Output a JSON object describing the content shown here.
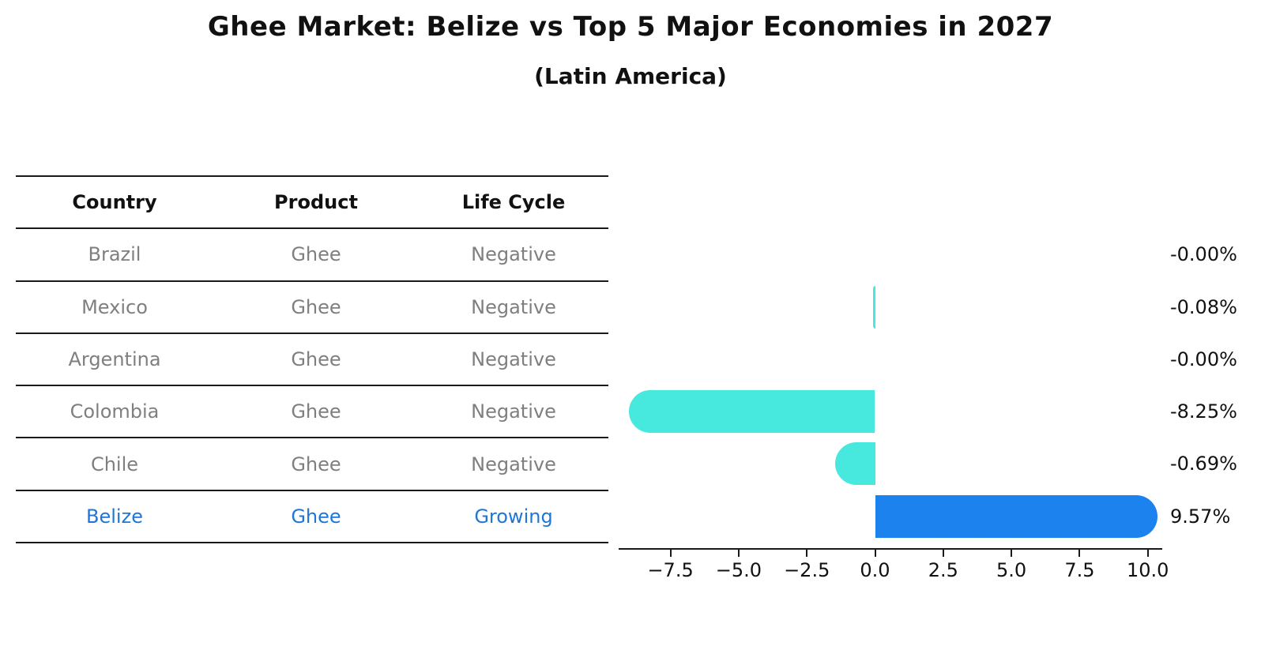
{
  "title": "Ghee Market: Belize vs Top 5 Major Economies in 2027",
  "subtitle": "(Latin America)",
  "table": {
    "headers": [
      "Country",
      "Product",
      "Life Cycle"
    ],
    "rows": [
      {
        "country": "Brazil",
        "product": "Ghee",
        "life_cycle": "Negative",
        "highlight": false
      },
      {
        "country": "Mexico",
        "product": "Ghee",
        "life_cycle": "Negative",
        "highlight": false
      },
      {
        "country": "Argentina",
        "product": "Ghee",
        "life_cycle": "Negative",
        "highlight": false
      },
      {
        "country": "Colombia",
        "product": "Ghee",
        "life_cycle": "Negative",
        "highlight": false
      },
      {
        "country": "Chile",
        "product": "Ghee",
        "life_cycle": "Negative",
        "highlight": false
      },
      {
        "country": "Belize",
        "product": "Ghee",
        "life_cycle": "Growing",
        "highlight": true
      }
    ]
  },
  "chart_data": {
    "type": "bar",
    "orientation": "horizontal",
    "title": "Ghee Market: Belize vs Top 5 Major Economies in 2027 (Latin America)",
    "categories": [
      "Brazil",
      "Mexico",
      "Argentina",
      "Colombia",
      "Chile",
      "Belize"
    ],
    "values": [
      -0.0,
      -0.08,
      -0.0,
      -8.25,
      -0.69,
      9.57
    ],
    "value_labels": [
      "-0.00%",
      "-0.08%",
      "-0.00%",
      "-8.25%",
      "-0.69%",
      "9.57%"
    ],
    "unit": "%",
    "xlim": [
      -9.4,
      10.5
    ],
    "x_ticks": [
      {
        "value": -7.5,
        "label": "−7.5"
      },
      {
        "value": -5.0,
        "label": "−5.0"
      },
      {
        "value": -2.5,
        "label": "−2.5"
      },
      {
        "value": 0.0,
        "label": "0.0"
      },
      {
        "value": 2.5,
        "label": "2.5"
      },
      {
        "value": 5.0,
        "label": "5.0"
      },
      {
        "value": 7.5,
        "label": "7.5"
      },
      {
        "value": 10.0,
        "label": "10.0"
      }
    ],
    "highlight_index": 5,
    "highlight_edge_style": "dotted",
    "legend": "none",
    "grid": false
  },
  "colors": {
    "negative_bar": "#47E8DE",
    "highlight_bar": "#1B82EE",
    "highlight_text": "#1E77D6",
    "row_text": "#7F7F7F",
    "axis_text": "#111111"
  }
}
